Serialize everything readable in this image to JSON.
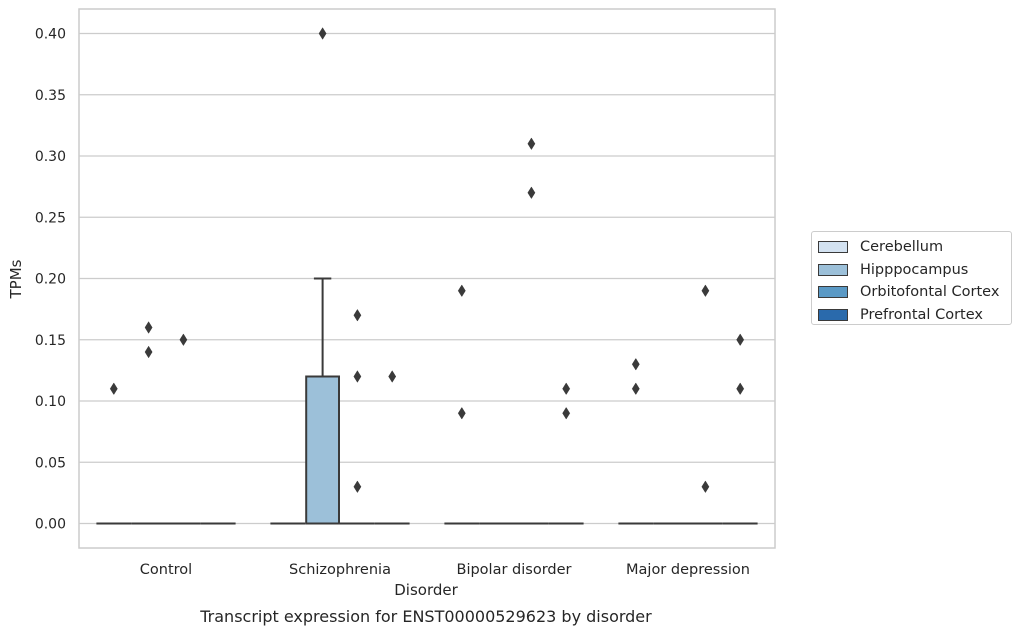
{
  "chart_data": {
    "type": "box",
    "title": "Transcript expression for ENST00000529623 by disorder",
    "xlabel": "Disorder",
    "ylabel": "TPMs",
    "ylim": [
      -0.02,
      0.42
    ],
    "yticks": [
      "0.00",
      "0.05",
      "0.10",
      "0.15",
      "0.20",
      "0.25",
      "0.30",
      "0.35",
      "0.40"
    ],
    "grid": true,
    "legend_position": "right",
    "categories": [
      "Control",
      "Schizophrenia",
      "Bipolar disorder",
      "Major depression"
    ],
    "series": [
      {
        "name": "Cerebellum",
        "color": "#d3e2f1",
        "boxes": [
          {
            "q1": 0,
            "median": 0,
            "q3": 0,
            "whisker_low": 0,
            "whisker_high": 0,
            "outliers": [
              0.11
            ]
          },
          {
            "q1": 0,
            "median": 0,
            "q3": 0,
            "whisker_low": 0,
            "whisker_high": 0,
            "outliers": []
          },
          {
            "q1": 0,
            "median": 0,
            "q3": 0,
            "whisker_low": 0,
            "whisker_high": 0,
            "outliers": [
              0.19,
              0.09
            ]
          },
          {
            "q1": 0,
            "median": 0,
            "q3": 0,
            "whisker_low": 0,
            "whisker_high": 0,
            "outliers": [
              0.13,
              0.11
            ]
          }
        ]
      },
      {
        "name": "Hipppocampus",
        "color": "#9cc0d9",
        "boxes": [
          {
            "q1": 0,
            "median": 0,
            "q3": 0,
            "whisker_low": 0,
            "whisker_high": 0,
            "outliers": [
              0.16,
              0.14
            ]
          },
          {
            "q1": 0,
            "median": 0,
            "q3": 0.12,
            "whisker_low": 0,
            "whisker_high": 0.2,
            "outliers": [
              0.4
            ]
          },
          {
            "q1": 0,
            "median": 0,
            "q3": 0,
            "whisker_low": 0,
            "whisker_high": 0,
            "outliers": []
          },
          {
            "q1": 0,
            "median": 0,
            "q3": 0,
            "whisker_low": 0,
            "whisker_high": 0,
            "outliers": []
          }
        ]
      },
      {
        "name": "Orbitofontal Cortex",
        "color": "#5a99c5",
        "boxes": [
          {
            "q1": 0,
            "median": 0,
            "q3": 0,
            "whisker_low": 0,
            "whisker_high": 0,
            "outliers": [
              0.15
            ]
          },
          {
            "q1": 0,
            "median": 0,
            "q3": 0,
            "whisker_low": 0,
            "whisker_high": 0,
            "outliers": [
              0.17,
              0.12,
              0.03
            ]
          },
          {
            "q1": 0,
            "median": 0,
            "q3": 0,
            "whisker_low": 0,
            "whisker_high": 0,
            "outliers": [
              0.31,
              0.27
            ]
          },
          {
            "q1": 0,
            "median": 0,
            "q3": 0,
            "whisker_low": 0,
            "whisker_high": 0,
            "outliers": [
              0.19,
              0.03
            ]
          }
        ]
      },
      {
        "name": "Prefrontal Cortex",
        "color": "#2a6aac",
        "boxes": [
          {
            "q1": 0,
            "median": 0,
            "q3": 0,
            "whisker_low": 0,
            "whisker_high": 0,
            "outliers": []
          },
          {
            "q1": 0,
            "median": 0,
            "q3": 0,
            "whisker_low": 0,
            "whisker_high": 0,
            "outliers": [
              0.12
            ]
          },
          {
            "q1": 0,
            "median": 0,
            "q3": 0,
            "whisker_low": 0,
            "whisker_high": 0,
            "outliers": [
              0.11,
              0.09
            ]
          },
          {
            "q1": 0,
            "median": 0,
            "q3": 0,
            "whisker_low": 0,
            "whisker_high": 0,
            "outliers": [
              0.15,
              0.11
            ]
          }
        ]
      }
    ]
  }
}
